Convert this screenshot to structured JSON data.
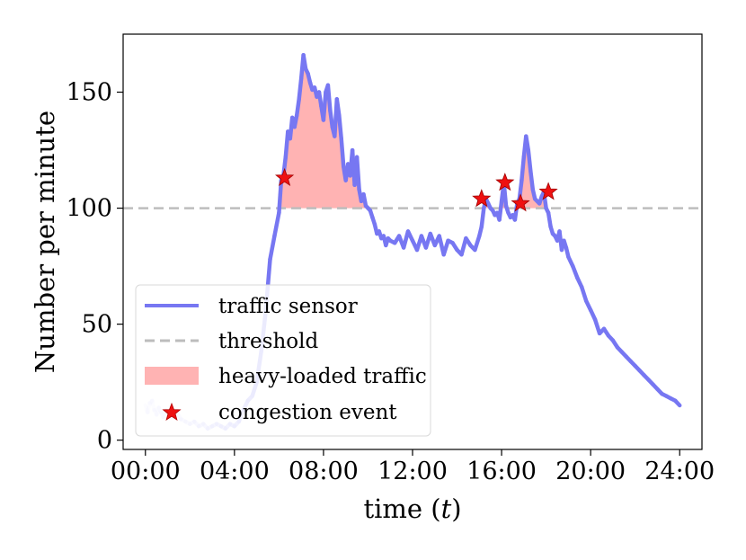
{
  "chart_data": {
    "type": "line",
    "xlabel": "time",
    "xlabel_var": "t",
    "ylabel": "Number per minute",
    "xlim": [
      -1,
      25
    ],
    "ylim": [
      -4,
      175
    ],
    "x_ticks": [
      {
        "value": 0,
        "label": "00:00"
      },
      {
        "value": 4,
        "label": "04:00"
      },
      {
        "value": 8,
        "label": "08:00"
      },
      {
        "value": 12,
        "label": "12:00"
      },
      {
        "value": 16,
        "label": "16:00"
      },
      {
        "value": 20,
        "label": "20:00"
      },
      {
        "value": 24,
        "label": "24:00"
      }
    ],
    "y_ticks": [
      {
        "value": 0,
        "label": "0"
      },
      {
        "value": 50,
        "label": "50"
      },
      {
        "value": 100,
        "label": "100"
      },
      {
        "value": 150,
        "label": "150"
      }
    ],
    "threshold": 100,
    "legend": {
      "position": "lower-left",
      "entries": [
        {
          "key": "sensor",
          "label": "traffic sensor"
        },
        {
          "key": "threshold",
          "label": "threshold"
        },
        {
          "key": "fill",
          "label": "heavy-loaded traffic"
        },
        {
          "key": "event",
          "label": "congestion event"
        }
      ]
    },
    "colors": {
      "sensor": "#7777f2",
      "threshold": "#bdbdbd",
      "fill": "#ffb3b3",
      "event": "#ee1111"
    },
    "series": [
      {
        "key": "sensor",
        "x": [
          0.0,
          0.1,
          0.2,
          0.3,
          0.4,
          0.5,
          0.6,
          0.7,
          0.8,
          0.9,
          1.0,
          1.2,
          1.4,
          1.6,
          1.8,
          2.0,
          2.2,
          2.4,
          2.6,
          2.8,
          3.0,
          3.2,
          3.4,
          3.6,
          3.8,
          4.0,
          4.2,
          4.4,
          4.6,
          4.8,
          5.0,
          5.2,
          5.4,
          5.6,
          5.8,
          6.0,
          6.1,
          6.2,
          6.3,
          6.4,
          6.5,
          6.6,
          6.7,
          6.8,
          6.9,
          7.0,
          7.1,
          7.2,
          7.3,
          7.4,
          7.5,
          7.6,
          7.7,
          7.8,
          7.9,
          8.0,
          8.1,
          8.2,
          8.3,
          8.4,
          8.5,
          8.6,
          8.7,
          8.8,
          8.9,
          9.0,
          9.1,
          9.2,
          9.3,
          9.4,
          9.5,
          9.6,
          9.7,
          9.8,
          9.9,
          10.0,
          10.1,
          10.2,
          10.3,
          10.4,
          10.5,
          10.6,
          10.7,
          10.8,
          10.9,
          11.0,
          11.2,
          11.4,
          11.6,
          11.8,
          12.0,
          12.2,
          12.4,
          12.6,
          12.8,
          13.0,
          13.2,
          13.4,
          13.6,
          13.8,
          14.0,
          14.2,
          14.4,
          14.6,
          14.8,
          15.0,
          15.1,
          15.2,
          15.3,
          15.4,
          15.5,
          15.6,
          15.7,
          15.8,
          15.9,
          16.0,
          16.1,
          16.2,
          16.3,
          16.4,
          16.5,
          16.6,
          16.7,
          16.8,
          16.9,
          17.0,
          17.1,
          17.2,
          17.3,
          17.4,
          17.5,
          17.6,
          17.7,
          17.8,
          17.9,
          18.0,
          18.1,
          18.2,
          18.3,
          18.4,
          18.5,
          18.6,
          18.7,
          18.8,
          18.9,
          19.0,
          19.2,
          19.4,
          19.6,
          19.8,
          20.0,
          20.2,
          20.4,
          20.6,
          20.8,
          21.0,
          21.2,
          21.4,
          21.6,
          21.8,
          22.0,
          22.2,
          22.4,
          22.6,
          22.8,
          23.0,
          23.2,
          23.4,
          23.6,
          23.8,
          24.0
        ],
        "y": [
          15,
          12,
          16,
          17,
          13,
          11,
          14,
          12,
          10,
          13,
          11,
          10,
          12,
          9,
          8,
          7,
          8,
          6,
          7,
          5,
          6,
          7,
          6,
          5,
          7,
          6,
          8,
          13,
          17,
          19,
          25,
          38,
          55,
          78,
          88,
          98,
          112,
          114,
          122,
          133,
          130,
          139,
          135,
          140,
          147,
          156,
          166,
          160,
          158,
          154,
          151,
          152,
          148,
          150,
          144,
          138,
          150,
          153,
          142,
          135,
          131,
          147,
          140,
          130,
          118,
          112,
          119,
          114,
          125,
          110,
          122,
          108,
          103,
          106,
          101,
          100,
          99,
          96,
          93,
          89,
          90,
          87,
          88,
          84,
          87,
          86,
          85,
          88,
          83,
          90,
          86,
          82,
          88,
          83,
          89,
          84,
          88,
          80,
          86,
          85,
          82,
          80,
          87,
          84,
          82,
          88,
          92,
          100,
          104,
          102,
          100,
          99,
          97,
          98,
          95,
          103,
          111,
          101,
          98,
          96,
          97,
          95,
          102,
          104,
          112,
          122,
          131,
          125,
          116,
          108,
          104,
          103,
          102,
          105,
          107,
          100,
          98,
          92,
          89,
          88,
          86,
          90,
          82,
          86,
          83,
          79,
          75,
          70,
          66,
          60,
          56,
          52,
          46,
          48,
          45,
          43,
          40,
          38,
          36,
          34,
          32,
          30,
          28,
          26,
          24,
          22,
          20,
          19,
          18,
          17,
          15
        ]
      }
    ],
    "events": [
      {
        "x": 6.25,
        "y": 113
      },
      {
        "x": 15.1,
        "y": 104
      },
      {
        "x": 16.15,
        "y": 111
      },
      {
        "x": 16.85,
        "y": 102
      },
      {
        "x": 18.1,
        "y": 107
      }
    ]
  }
}
